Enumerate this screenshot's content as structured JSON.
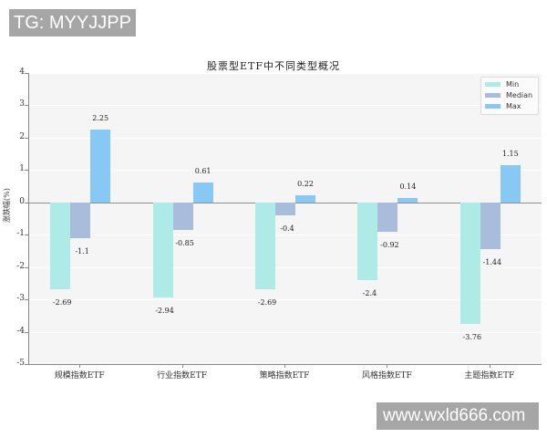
{
  "watermarks": {
    "top": "TG: MYYJJPP",
    "bottom": "www.wxld666.com"
  },
  "colors": {
    "min": "#aeeae6",
    "median": "#a9bcdb",
    "max": "#88c8f5",
    "plot_bg": "#f5f5f5"
  },
  "chart_data": {
    "type": "bar",
    "title": "股票型ETF中不同类型概况",
    "xlabel": "",
    "ylabel": "涨跌幅(%)",
    "ylim": [
      -5,
      4
    ],
    "yticks": [
      "4",
      "3",
      "2",
      "1",
      "0",
      "-1",
      "-2",
      "-3",
      "-4",
      "-5"
    ],
    "categories": [
      "规模指数ETF",
      "行业指数ETF",
      "策略指数ETF",
      "风格指数ETF",
      "主题指数ETF"
    ],
    "series": [
      {
        "name": "Min",
        "values": [
          -2.69,
          -2.94,
          -2.69,
          -2.4,
          -3.76
        ]
      },
      {
        "name": "Median",
        "values": [
          -1.1,
          -0.85,
          -0.4,
          -0.92,
          -1.44
        ]
      },
      {
        "name": "Max",
        "values": [
          2.25,
          0.61,
          0.22,
          0.14,
          1.15
        ]
      }
    ],
    "value_labels": {
      "Min": [
        "-2.69",
        "-2.94",
        "-2.69",
        "-2.4",
        "-3.76"
      ],
      "Median": [
        "-1.1",
        "-0.85",
        "-0.4",
        "-0.92",
        "-1.44"
      ],
      "Max": [
        "2.25",
        "0.61",
        "0.22",
        "0.14",
        "1.15"
      ]
    },
    "legend": {
      "position": "upper right",
      "entries": [
        "Min",
        "Median",
        "Max"
      ]
    },
    "grid": true
  }
}
